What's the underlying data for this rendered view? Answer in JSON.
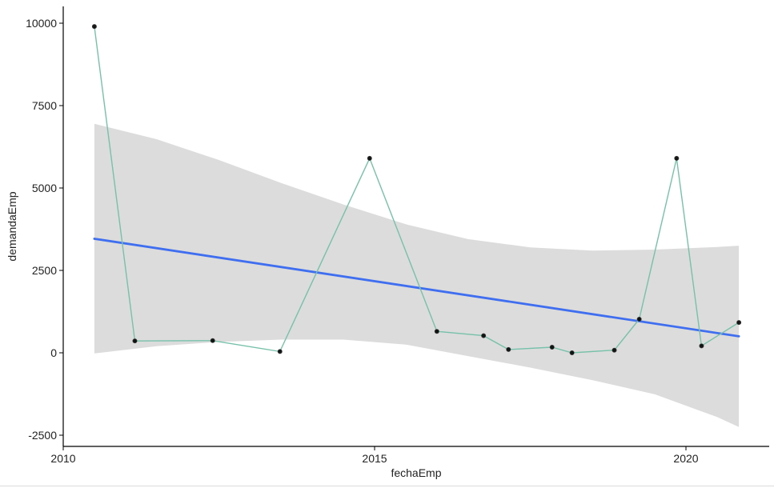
{
  "chart_data": {
    "type": "scatter",
    "xlabel": "fechaEmp",
    "ylabel": "demandaEmp",
    "xlim": [
      2010,
      2021.3
    ],
    "ylim": [
      -2650,
      10450
    ],
    "x_ticks": [
      2010,
      2015,
      2020
    ],
    "x_tick_labels": [
      "2010",
      "2015",
      "2020"
    ],
    "y_ticks": [
      -2500,
      0,
      2500,
      5000,
      7500,
      10000
    ],
    "y_tick_labels": [
      "-2500",
      "0",
      "2500",
      "5000",
      "7500",
      "10000"
    ],
    "grid": false,
    "legend": "none",
    "series": [
      {
        "kind": "points-and-line",
        "x": [
          2010.5,
          2011.15,
          2012.4,
          2013.48,
          2014.92,
          2016.0,
          2016.75,
          2017.15,
          2017.85,
          2018.17,
          2018.85,
          2019.25,
          2019.85,
          2020.25,
          2020.85
        ],
        "y": [
          9900,
          360,
          370,
          40,
          5900,
          650,
          520,
          100,
          170,
          0,
          80,
          1020,
          5900,
          210,
          920
        ]
      },
      {
        "kind": "linear-fit",
        "x": [
          2010.5,
          2020.85
        ],
        "y": [
          3460,
          500
        ]
      },
      {
        "kind": "confidence-band",
        "x": [
          2010.5,
          2011.5,
          2012.5,
          2013.5,
          2014.5,
          2015.5,
          2016.5,
          2017.5,
          2018.5,
          2019.5,
          2020.5,
          2020.85
        ],
        "lower": [
          -20,
          200,
          330,
          400,
          400,
          250,
          -100,
          -450,
          -830,
          -1260,
          -1950,
          -2250
        ],
        "upper": [
          6950,
          6480,
          5850,
          5150,
          4500,
          3900,
          3450,
          3200,
          3100,
          3130,
          3210,
          3250
        ]
      }
    ],
    "colors": {
      "points": "#000000",
      "connecting_line": "#77c1aa",
      "fit_line": "#3f6ff0",
      "band": "#dcdcdc",
      "axis": "#000000"
    }
  }
}
